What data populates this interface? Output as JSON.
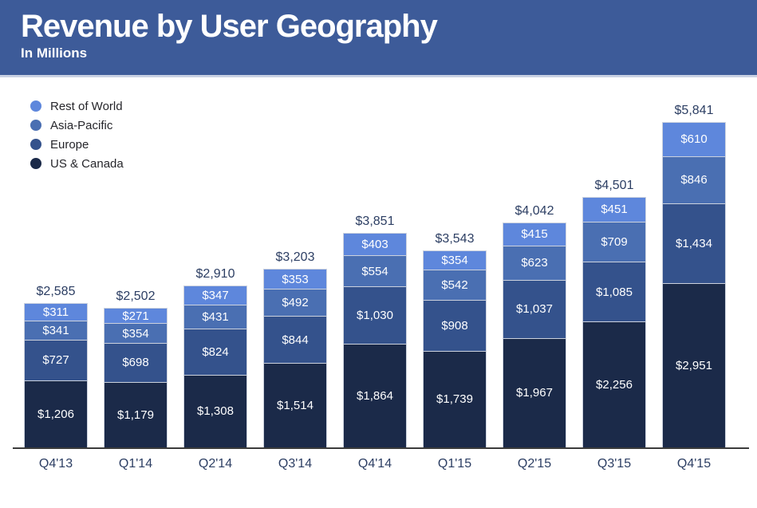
{
  "header": {
    "title": "Revenue by User Geography",
    "subtitle": "In Millions"
  },
  "colors": {
    "header_bg": "#3d5b99",
    "header_border": "#c9d1e3",
    "axis_line": "#3c3c3c",
    "label_text": "#2c3e63",
    "legend_text": "#26262b",
    "segment_border": "#ccd2de",
    "segment_value_text": "#ffffff"
  },
  "chart_data": {
    "type": "bar",
    "stacked": true,
    "title": "Revenue by User Geography",
    "subtitle": "In Millions",
    "xlabel": "",
    "ylabel": "",
    "currency_prefix": "$",
    "grid": false,
    "legend_position": "top-left",
    "legend_order": [
      "Rest of World",
      "Asia-Pacific",
      "Europe",
      "US & Canada"
    ],
    "categories": [
      "Q4'13",
      "Q1'14",
      "Q2'14",
      "Q3'14",
      "Q4'14",
      "Q1'15",
      "Q2'15",
      "Q3'15",
      "Q4'15"
    ],
    "series": [
      {
        "name": "US & Canada",
        "color": "#1b2a49",
        "values": [
          1206,
          1179,
          1308,
          1514,
          1864,
          1739,
          1967,
          2256,
          2951
        ]
      },
      {
        "name": "Europe",
        "color": "#34528c",
        "values": [
          727,
          698,
          824,
          844,
          1030,
          908,
          1037,
          1085,
          1434
        ]
      },
      {
        "name": "Asia-Pacific",
        "color": "#4a6fb2",
        "values": [
          341,
          354,
          431,
          492,
          554,
          542,
          623,
          709,
          846
        ]
      },
      {
        "name": "Rest of World",
        "color": "#5e87dc",
        "values": [
          311,
          271,
          347,
          353,
          403,
          354,
          415,
          451,
          610
        ]
      }
    ],
    "totals": [
      2585,
      2502,
      2910,
      3203,
      3851,
      3543,
      4042,
      4501,
      5841
    ],
    "total_labels": [
      "$2,585",
      "$2,502",
      "$2,910",
      "$3,203",
      "$3,851",
      "$3,543",
      "$4,042",
      "$4,501",
      "$5,841"
    ],
    "ylim": [
      0,
      5841
    ]
  }
}
